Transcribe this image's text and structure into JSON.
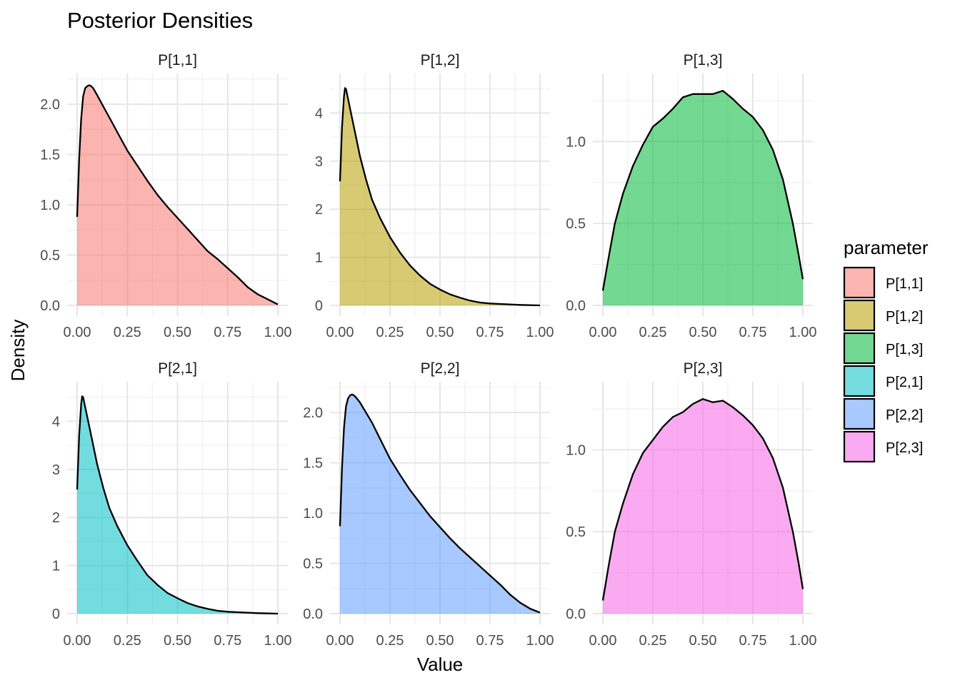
{
  "chart_data": {
    "type": "area",
    "title": "Posterior Densities",
    "xlabel": "Value",
    "ylabel": "Density",
    "legend": {
      "title": "parameter",
      "placement": "right"
    },
    "grid": true,
    "x_ticks": [
      0.0,
      0.25,
      0.5,
      0.75,
      1.0
    ],
    "x_tick_labels": [
      "0.00",
      "0.25",
      "0.50",
      "0.75",
      "1.00"
    ],
    "xlim": [
      0,
      1
    ],
    "panels": [
      {
        "name": "P[1,1]",
        "color": "#F8766D",
        "ylim": [
          0,
          2.2
        ],
        "y_ticks": [
          0,
          0.5,
          1,
          1.5,
          2
        ],
        "y_tick_labels": [
          "0.0",
          "0.5",
          "1.0",
          "1.5",
          "2.0"
        ],
        "x": [
          0.0,
          0.01,
          0.02,
          0.03,
          0.04,
          0.05,
          0.06,
          0.07,
          0.08,
          0.1,
          0.13,
          0.16,
          0.19,
          0.22,
          0.25,
          0.3,
          0.35,
          0.4,
          0.45,
          0.5,
          0.55,
          0.6,
          0.65,
          0.7,
          0.75,
          0.8,
          0.85,
          0.9,
          0.95,
          1.0
        ],
        "y": [
          0.88,
          1.45,
          1.85,
          2.08,
          2.16,
          2.18,
          2.19,
          2.18,
          2.16,
          2.09,
          1.98,
          1.87,
          1.76,
          1.65,
          1.54,
          1.39,
          1.24,
          1.1,
          0.98,
          0.87,
          0.76,
          0.65,
          0.54,
          0.46,
          0.37,
          0.28,
          0.18,
          0.11,
          0.06,
          0.01
        ]
      },
      {
        "name": "P[1,2]",
        "color": "#B79F00",
        "ylim": [
          0,
          4.6
        ],
        "y_ticks": [
          0,
          1,
          2,
          3,
          4
        ],
        "y_tick_labels": [
          "0",
          "1",
          "2",
          "3",
          "4"
        ],
        "x": [
          0.0,
          0.01,
          0.02,
          0.025,
          0.03,
          0.04,
          0.06,
          0.08,
          0.1,
          0.13,
          0.16,
          0.2,
          0.25,
          0.3,
          0.35,
          0.4,
          0.45,
          0.5,
          0.55,
          0.6,
          0.65,
          0.7,
          0.75,
          0.8,
          0.9,
          1.0
        ],
        "y": [
          2.58,
          3.7,
          4.35,
          4.52,
          4.5,
          4.3,
          3.9,
          3.5,
          3.1,
          2.62,
          2.2,
          1.82,
          1.42,
          1.1,
          0.83,
          0.62,
          0.45,
          0.33,
          0.23,
          0.16,
          0.1,
          0.06,
          0.04,
          0.03,
          0.01,
          0.0
        ]
      },
      {
        "name": "P[1,3]",
        "color": "#00BA38",
        "ylim": [
          0,
          1.35
        ],
        "y_ticks": [
          0,
          0.5,
          1.0
        ],
        "y_tick_labels": [
          "0.0",
          "0.5",
          "1.0"
        ],
        "x": [
          0.0,
          0.03,
          0.06,
          0.1,
          0.15,
          0.2,
          0.25,
          0.3,
          0.35,
          0.4,
          0.45,
          0.5,
          0.55,
          0.6,
          0.65,
          0.7,
          0.75,
          0.8,
          0.85,
          0.9,
          0.95,
          0.98,
          1.0
        ],
        "y": [
          0.09,
          0.3,
          0.5,
          0.68,
          0.85,
          0.98,
          1.09,
          1.14,
          1.2,
          1.27,
          1.29,
          1.29,
          1.29,
          1.31,
          1.26,
          1.2,
          1.15,
          1.07,
          0.95,
          0.77,
          0.5,
          0.3,
          0.16
        ]
      },
      {
        "name": "P[2,1]",
        "color": "#00BFC4",
        "ylim": [
          0,
          4.6
        ],
        "y_ticks": [
          0,
          1,
          2,
          3,
          4
        ],
        "y_tick_labels": [
          "0",
          "1",
          "2",
          "3",
          "4"
        ],
        "x": [
          0.0,
          0.01,
          0.02,
          0.025,
          0.03,
          0.04,
          0.06,
          0.08,
          0.1,
          0.13,
          0.16,
          0.2,
          0.25,
          0.3,
          0.35,
          0.4,
          0.45,
          0.5,
          0.55,
          0.6,
          0.65,
          0.7,
          0.75,
          0.8,
          0.9,
          1.0
        ],
        "y": [
          2.58,
          3.7,
          4.35,
          4.52,
          4.5,
          4.3,
          3.9,
          3.5,
          3.1,
          2.62,
          2.2,
          1.82,
          1.42,
          1.1,
          0.8,
          0.6,
          0.43,
          0.32,
          0.22,
          0.15,
          0.1,
          0.06,
          0.04,
          0.03,
          0.01,
          0.0
        ]
      },
      {
        "name": "P[2,2]",
        "color": "#619CFF",
        "ylim": [
          0,
          2.2
        ],
        "y_ticks": [
          0,
          0.5,
          1,
          1.5,
          2
        ],
        "y_tick_labels": [
          "0.0",
          "0.5",
          "1.0",
          "1.5",
          "2.0"
        ],
        "x": [
          0.0,
          0.01,
          0.02,
          0.03,
          0.04,
          0.05,
          0.06,
          0.07,
          0.08,
          0.1,
          0.13,
          0.16,
          0.19,
          0.22,
          0.25,
          0.3,
          0.35,
          0.4,
          0.45,
          0.5,
          0.55,
          0.6,
          0.65,
          0.7,
          0.75,
          0.8,
          0.85,
          0.9,
          0.95,
          1.0
        ],
        "y": [
          0.87,
          1.45,
          1.85,
          2.06,
          2.14,
          2.17,
          2.18,
          2.17,
          2.15,
          2.1,
          2.0,
          1.9,
          1.78,
          1.66,
          1.54,
          1.38,
          1.23,
          1.1,
          0.97,
          0.86,
          0.75,
          0.65,
          0.56,
          0.47,
          0.38,
          0.29,
          0.19,
          0.11,
          0.05,
          0.01
        ]
      },
      {
        "name": "P[2,3]",
        "color": "#F564E3",
        "ylim": [
          0,
          1.35
        ],
        "y_ticks": [
          0,
          0.5,
          1.0
        ],
        "y_tick_labels": [
          "0.0",
          "0.5",
          "1.0"
        ],
        "x": [
          0.0,
          0.03,
          0.06,
          0.1,
          0.15,
          0.2,
          0.25,
          0.3,
          0.35,
          0.4,
          0.45,
          0.5,
          0.55,
          0.6,
          0.65,
          0.7,
          0.75,
          0.8,
          0.85,
          0.9,
          0.95,
          0.98,
          1.0
        ],
        "y": [
          0.08,
          0.3,
          0.5,
          0.67,
          0.85,
          0.98,
          1.06,
          1.14,
          1.2,
          1.23,
          1.28,
          1.31,
          1.29,
          1.3,
          1.26,
          1.21,
          1.15,
          1.07,
          0.95,
          0.77,
          0.5,
          0.3,
          0.15
        ]
      }
    ]
  }
}
